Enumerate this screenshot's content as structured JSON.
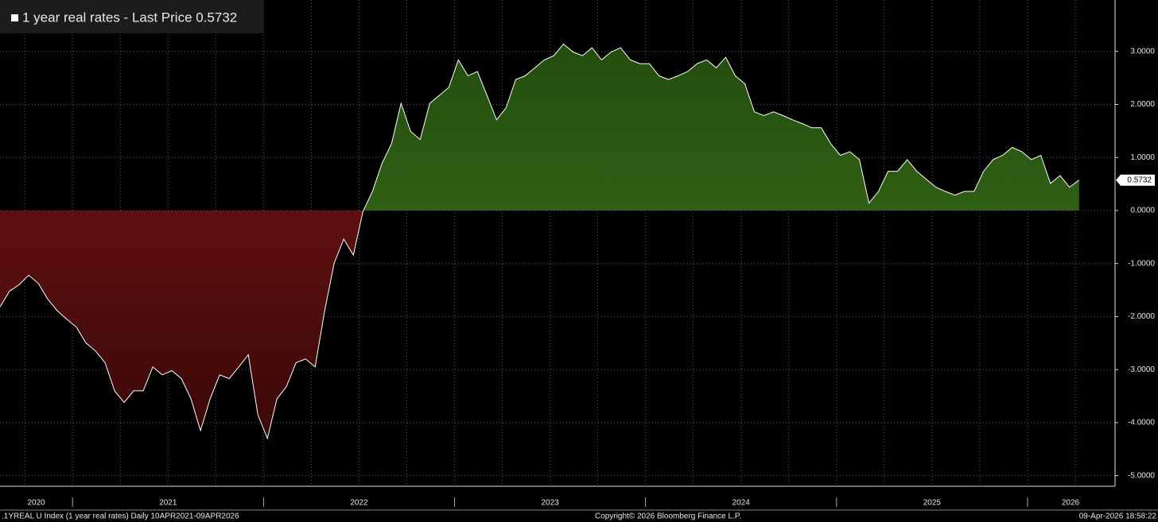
{
  "chart_data": {
    "type": "area",
    "title": "1 year real rates - Last Price 0.5732",
    "footer_left": ".1YREAL U Index (1 year real rates) Daily 10APR2021-09APR2026",
    "footer_center": "Copyright© 2026 Bloomberg Finance L.P.",
    "footer_right": "09-Apr-2026 18:58:22",
    "x": [
      2020.62,
      2020.67,
      2020.72,
      2020.77,
      2020.82,
      2020.87,
      2020.92,
      2020.97,
      2021.02,
      2021.07,
      2021.12,
      2021.17,
      2021.22,
      2021.27,
      2021.32,
      2021.37,
      2021.42,
      2021.47,
      2021.52,
      2021.57,
      2021.62,
      2021.67,
      2021.72,
      2021.77,
      2021.82,
      2021.87,
      2021.92,
      2021.97,
      2022.02,
      2022.07,
      2022.12,
      2022.17,
      2022.22,
      2022.27,
      2022.32,
      2022.37,
      2022.42,
      2022.47,
      2022.52,
      2022.57,
      2022.62,
      2022.67,
      2022.72,
      2022.77,
      2022.82,
      2022.87,
      2022.92,
      2022.97,
      2023.02,
      2023.07,
      2023.12,
      2023.17,
      2023.22,
      2023.27,
      2023.32,
      2023.37,
      2023.42,
      2023.47,
      2023.52,
      2023.57,
      2023.62,
      2023.67,
      2023.72,
      2023.77,
      2023.82,
      2023.87,
      2023.92,
      2023.97,
      2024.02,
      2024.07,
      2024.12,
      2024.17,
      2024.22,
      2024.27,
      2024.32,
      2024.37,
      2024.42,
      2024.47,
      2024.52,
      2024.57,
      2024.62,
      2024.67,
      2024.72,
      2024.77,
      2024.82,
      2024.87,
      2024.92,
      2024.97,
      2025.02,
      2025.07,
      2025.12,
      2025.17,
      2025.22,
      2025.27,
      2025.32,
      2025.37,
      2025.42,
      2025.47,
      2025.52,
      2025.57,
      2025.62,
      2025.67,
      2025.72,
      2025.77,
      2025.82,
      2025.87,
      2025.92,
      2025.97,
      2026.02,
      2026.07,
      2026.12,
      2026.17,
      2026.22,
      2026.27
    ],
    "values": [
      -1.82,
      -1.52,
      -1.4,
      -1.22,
      -1.37,
      -1.67,
      -1.89,
      -2.05,
      -2.2,
      -2.5,
      -2.65,
      -2.87,
      -3.4,
      -3.62,
      -3.4,
      -3.4,
      -2.95,
      -3.1,
      -3.02,
      -3.17,
      -3.55,
      -4.15,
      -3.55,
      -3.1,
      -3.17,
      -2.95,
      -2.72,
      -3.85,
      -4.3,
      -3.55,
      -3.32,
      -2.87,
      -2.8,
      -2.95,
      -1.89,
      -0.99,
      -0.54,
      -0.84,
      -0.02,
      0.36,
      0.89,
      1.26,
      2.02,
      1.49,
      1.34,
      2.02,
      2.17,
      2.32,
      2.84,
      2.54,
      2.62,
      2.17,
      1.71,
      1.94,
      2.47,
      2.54,
      2.69,
      2.84,
      2.92,
      3.14,
      2.99,
      2.92,
      3.07,
      2.84,
      2.99,
      3.07,
      2.84,
      2.77,
      2.77,
      2.54,
      2.47,
      2.54,
      2.62,
      2.77,
      2.84,
      2.69,
      2.89,
      2.54,
      2.39,
      1.86,
      1.79,
      1.86,
      1.79,
      1.71,
      1.64,
      1.56,
      1.56,
      1.26,
      1.04,
      1.11,
      0.96,
      0.14,
      0.36,
      0.74,
      0.74,
      0.96,
      0.74,
      0.59,
      0.44,
      0.36,
      0.29,
      0.36,
      0.36,
      0.74,
      0.96,
      1.04,
      1.19,
      1.11,
      0.96,
      1.04,
      0.51,
      0.66,
      0.44,
      0.5732
    ],
    "color": "#ffffff",
    "positive_color": "#3f7a1c",
    "negative_color": "#7a1616",
    "xlim": [
      2020.62,
      2026.45
    ],
    "xticks": [
      2020.75,
      2021,
      2021.25,
      2021.5,
      2021.75,
      2022,
      2022.25,
      2022.5,
      2022.75,
      2023,
      2023.25,
      2023.5,
      2023.75,
      2024,
      2024.25,
      2024.5,
      2024.75,
      2025,
      2025.25,
      2025.5,
      2025.75,
      2026,
      2026.25
    ],
    "year_labels": [
      "2020",
      "2021",
      "2022",
      "2023",
      "2024",
      "2025",
      "2026"
    ],
    "ylim": [
      -5.2,
      3.97
    ],
    "yticks": [
      {
        "value": 3,
        "label": "3.0000"
      },
      {
        "value": 2,
        "label": "2.0000"
      },
      {
        "value": 1,
        "label": "1.0000"
      },
      {
        "value": 0,
        "label": "0.0000"
      },
      {
        "value": -1,
        "label": "-1.0000"
      },
      {
        "value": -2,
        "label": "-2.0000"
      },
      {
        "value": -3,
        "label": "-3.0000"
      },
      {
        "value": -4,
        "label": "-4.0000"
      },
      {
        "value": -5,
        "label": "-5.0000"
      }
    ],
    "grid": true
  }
}
